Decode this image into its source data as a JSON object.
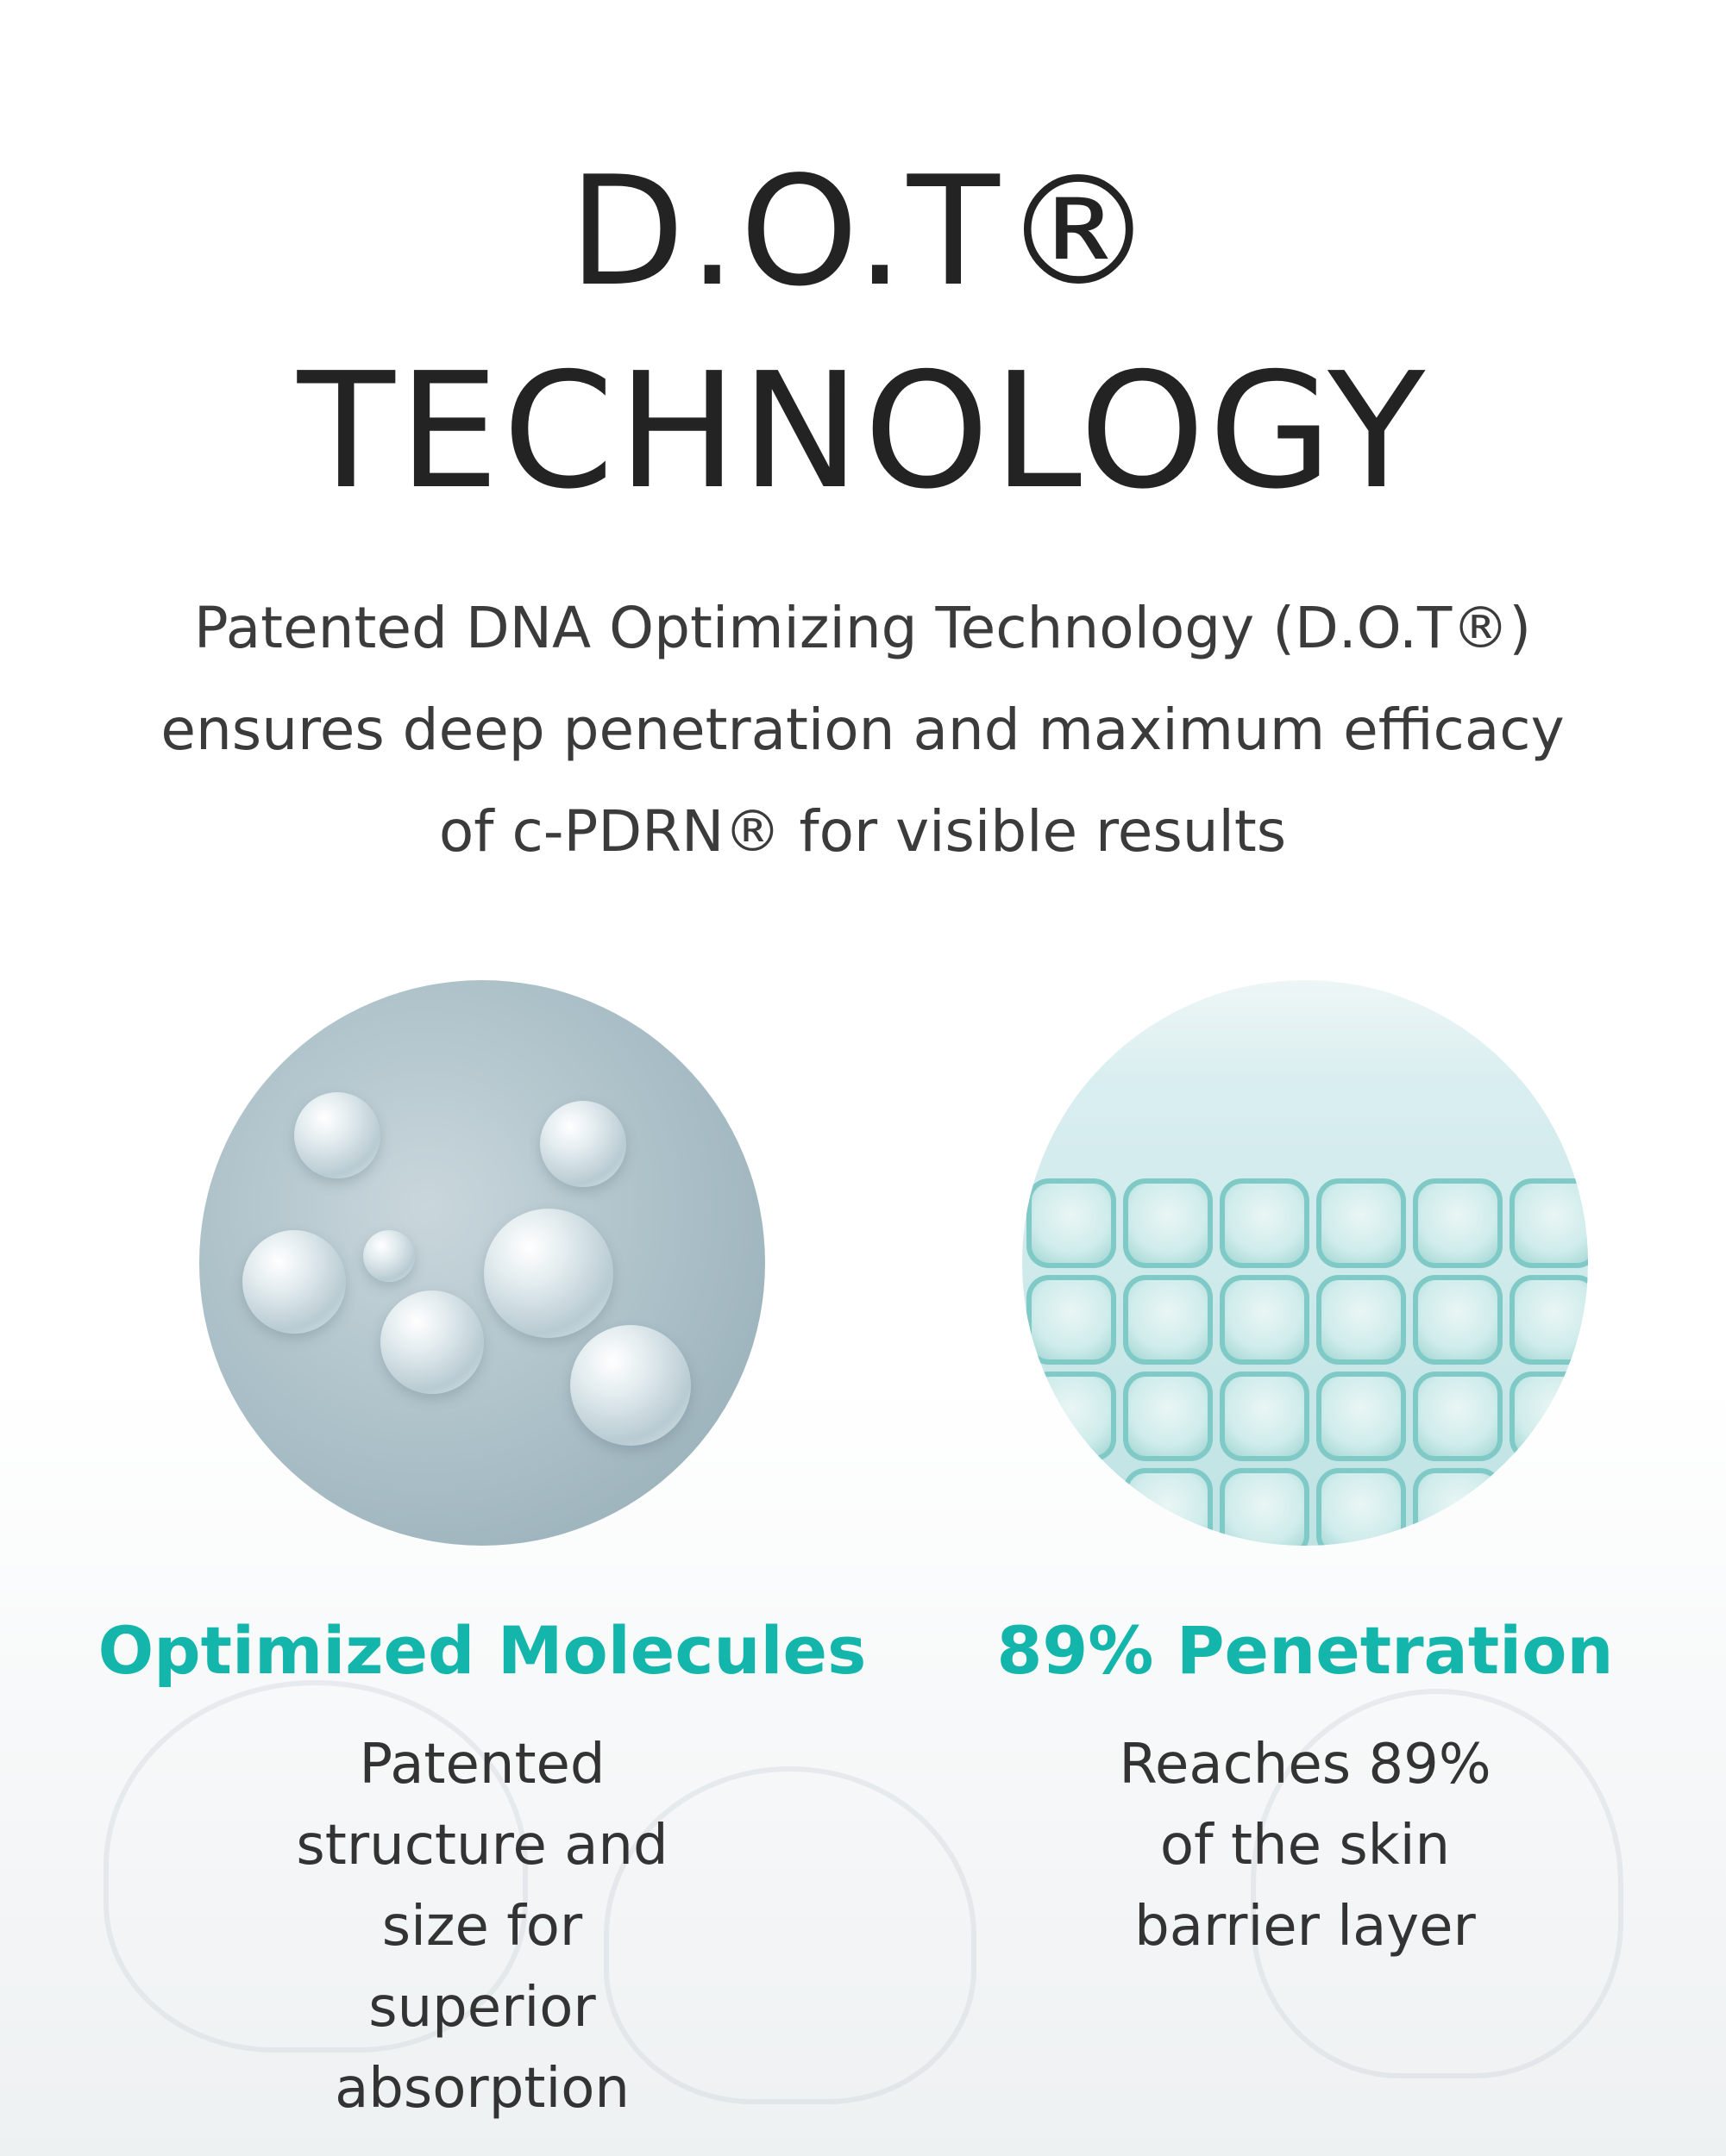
{
  "title": {
    "line1": "D.O.T®",
    "line2": "TECHNOLOGY"
  },
  "description": "Patented DNA Optimizing Technology (D.O.T®) ensures deep penetration and maximum efficacy of c-PDRN®  for visible results",
  "accent_color": "#14b5ab",
  "features": [
    {
      "image": "molecule-image",
      "heading": "Optimized Molecules",
      "text": "Patented structure and size for superior absorption"
    },
    {
      "image": "skin-cells-image",
      "heading": "89% Penetration",
      "text": "Reaches 89% of the skin barrier layer"
    }
  ]
}
